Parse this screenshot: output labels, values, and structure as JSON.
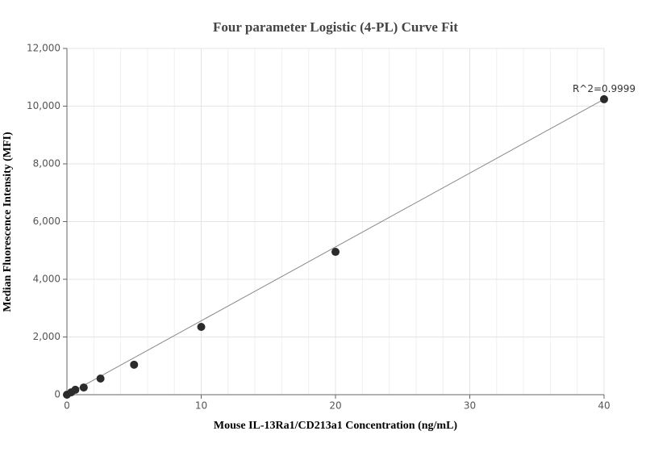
{
  "chart_data": {
    "type": "scatter",
    "title": "Four parameter Logistic (4-PL) Curve Fit",
    "x_label": "Mouse IL-13Ra1/CD213a1 Concentration (ng/mL)",
    "y_label": "Median Fluorescence Intensity (MFI)",
    "annotation": "R^2=0.9999",
    "xlim": [
      0,
      40
    ],
    "ylim": [
      0,
      12000
    ],
    "xticks": [
      0,
      10,
      20,
      30,
      40
    ],
    "yticks": [
      0,
      {
        "value": 2000,
        "label": "2,000"
      },
      {
        "value": 4000,
        "label": "4,000"
      },
      {
        "value": 6000,
        "label": "6,000"
      },
      {
        "value": 8000,
        "label": "8,000"
      },
      {
        "value": 10000,
        "label": "10,000"
      },
      {
        "value": 12000,
        "label": "12,000"
      }
    ],
    "grid": true,
    "series": [
      {
        "color": "#2b2b2b",
        "x": [
          0,
          0.3125,
          0.625,
          1.25,
          2.5,
          5,
          10,
          20,
          40
        ],
        "values": [
          0,
          80,
          170,
          250,
          560,
          1040,
          2350,
          4950,
          10240
        ]
      }
    ],
    "fit": {
      "color": "#888888",
      "x": [
        0,
        40
      ],
      "values": [
        0,
        10240
      ]
    }
  }
}
